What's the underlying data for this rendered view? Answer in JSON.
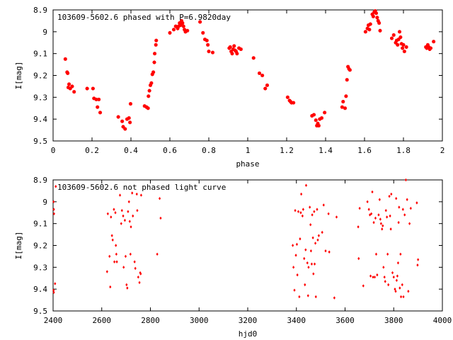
{
  "chart_data": [
    {
      "type": "scatter",
      "title": "103609-5602.6 phased with P=6.9820day",
      "xlabel": "phase",
      "ylabel": "I[mag]",
      "xlim": [
        0,
        2
      ],
      "ylim": [
        8.9,
        9.5
      ],
      "y_inverted": true,
      "x_ticks": [
        "0",
        "0.2",
        "0.4",
        "0.6",
        "0.8",
        "1",
        "1.2",
        "1.4",
        "1.6",
        "1.8",
        "2"
      ],
      "y_ticks": [
        "8.9",
        "9",
        "9.1",
        "9.2",
        "9.3",
        "9.4",
        "9.5"
      ],
      "grid": false,
      "legend": "none",
      "marker_color": "#ff0000",
      "marker": "cross",
      "points": [
        [
          0.063,
          9.125
        ],
        [
          0.072,
          9.185
        ],
        [
          0.075,
          9.19
        ],
        [
          0.078,
          9.255
        ],
        [
          0.082,
          9.24
        ],
        [
          0.088,
          9.26
        ],
        [
          0.098,
          9.25
        ],
        [
          0.108,
          9.275
        ],
        [
          0.175,
          9.26
        ],
        [
          0.205,
          9.26
        ],
        [
          0.21,
          9.305
        ],
        [
          0.222,
          9.31
        ],
        [
          0.228,
          9.345
        ],
        [
          0.235,
          9.31
        ],
        [
          0.242,
          9.37
        ],
        [
          0.335,
          9.39
        ],
        [
          0.355,
          9.41
        ],
        [
          0.36,
          9.435
        ],
        [
          0.37,
          9.445
        ],
        [
          0.38,
          9.4
        ],
        [
          0.39,
          9.395
        ],
        [
          0.395,
          9.415
        ],
        [
          0.398,
          9.33
        ],
        [
          0.47,
          9.34
        ],
        [
          0.48,
          9.345
        ],
        [
          0.488,
          9.35
        ],
        [
          0.49,
          9.295
        ],
        [
          0.495,
          9.27
        ],
        [
          0.5,
          9.245
        ],
        [
          0.505,
          9.235
        ],
        [
          0.51,
          9.195
        ],
        [
          0.515,
          9.185
        ],
        [
          0.52,
          9.14
        ],
        [
          0.522,
          9.1
        ],
        [
          0.528,
          9.06
        ],
        [
          0.53,
          9.04
        ],
        [
          0.6,
          9.005
        ],
        [
          0.62,
          8.99
        ],
        [
          0.63,
          8.975
        ],
        [
          0.64,
          8.985
        ],
        [
          0.645,
          8.975
        ],
        [
          0.65,
          8.96
        ],
        [
          0.655,
          8.97
        ],
        [
          0.66,
          8.95
        ],
        [
          0.665,
          8.96
        ],
        [
          0.67,
          8.975
        ],
        [
          0.675,
          8.99
        ],
        [
          0.68,
          9.0
        ],
        [
          0.69,
          8.995
        ],
        [
          0.755,
          8.955
        ],
        [
          0.77,
          9.005
        ],
        [
          0.78,
          9.035
        ],
        [
          0.79,
          9.04
        ],
        [
          0.795,
          9.06
        ],
        [
          0.8,
          9.09
        ],
        [
          0.82,
          9.095
        ],
        [
          0.905,
          9.075
        ],
        [
          0.91,
          9.07
        ],
        [
          0.915,
          9.09
        ],
        [
          0.92,
          9.1
        ],
        [
          0.925,
          9.08
        ],
        [
          0.93,
          9.065
        ],
        [
          0.935,
          9.085
        ],
        [
          0.94,
          9.09
        ],
        [
          0.945,
          9.1
        ],
        [
          0.955,
          9.075
        ],
        [
          0.965,
          9.08
        ],
        [
          1.03,
          9.12
        ],
        [
          1.06,
          9.19
        ],
        [
          1.075,
          9.2
        ],
        [
          1.09,
          9.26
        ],
        [
          1.1,
          9.245
        ],
        [
          1.205,
          9.3
        ],
        [
          1.215,
          9.315
        ],
        [
          1.22,
          9.32
        ],
        [
          1.225,
          9.325
        ],
        [
          1.235,
          9.325
        ],
        [
          1.33,
          9.385
        ],
        [
          1.34,
          9.38
        ],
        [
          1.35,
          9.405
        ],
        [
          1.355,
          9.43
        ],
        [
          1.36,
          9.42
        ],
        [
          1.365,
          9.43
        ],
        [
          1.37,
          9.4
        ],
        [
          1.38,
          9.395
        ],
        [
          1.395,
          9.37
        ],
        [
          1.485,
          9.345
        ],
        [
          1.49,
          9.32
        ],
        [
          1.5,
          9.35
        ],
        [
          1.505,
          9.295
        ],
        [
          1.51,
          9.22
        ],
        [
          1.515,
          9.16
        ],
        [
          1.52,
          9.17
        ],
        [
          1.525,
          9.175
        ],
        [
          1.605,
          9.0
        ],
        [
          1.615,
          8.985
        ],
        [
          1.62,
          8.97
        ],
        [
          1.625,
          8.99
        ],
        [
          1.63,
          8.965
        ],
        [
          1.64,
          8.92
        ],
        [
          1.645,
          8.93
        ],
        [
          1.65,
          8.91
        ],
        [
          1.655,
          8.905
        ],
        [
          1.66,
          8.915
        ],
        [
          1.665,
          8.935
        ],
        [
          1.67,
          8.95
        ],
        [
          1.675,
          8.96
        ],
        [
          1.68,
          8.995
        ],
        [
          1.74,
          9.03
        ],
        [
          1.75,
          9.015
        ],
        [
          1.76,
          9.05
        ],
        [
          1.765,
          9.04
        ],
        [
          1.77,
          9.06
        ],
        [
          1.775,
          9.035
        ],
        [
          1.78,
          9.0
        ],
        [
          1.785,
          9.025
        ],
        [
          1.79,
          9.055
        ],
        [
          1.795,
          9.075
        ],
        [
          1.8,
          9.06
        ],
        [
          1.805,
          9.09
        ],
        [
          1.815,
          9.07
        ],
        [
          1.915,
          9.07
        ],
        [
          1.92,
          9.075
        ],
        [
          1.925,
          9.06
        ],
        [
          1.93,
          9.07
        ],
        [
          1.935,
          9.08
        ],
        [
          1.94,
          9.075
        ],
        [
          1.955,
          9.045
        ]
      ]
    },
    {
      "type": "scatter",
      "title": "103609-5602.6 not phased light curve",
      "xlabel": "hjd0",
      "ylabel": "I[mag]",
      "xlim": [
        2400,
        4000
      ],
      "ylim": [
        8.9,
        9.5
      ],
      "y_inverted": true,
      "x_ticks": [
        "2400",
        "2600",
        "2800",
        "3000",
        "3200",
        "3400",
        "3600",
        "3800",
        "4000"
      ],
      "y_ticks": [
        "8.9",
        "9",
        "9.1",
        "9.2",
        "9.3",
        "9.4",
        "9.5"
      ],
      "grid": false,
      "legend": "none",
      "marker_color": "#ff0000",
      "marker": "diamond",
      "points": [
        [
          2402,
          9.0
        ],
        [
          2403,
          9.035
        ],
        [
          2404,
          9.055
        ],
        [
          2402,
          9.405
        ],
        [
          2403,
          9.415
        ],
        [
          2408,
          9.375
        ],
        [
          2411,
          8.93
        ],
        [
          2622,
          9.32
        ],
        [
          2625,
          9.055
        ],
        [
          2632,
          9.25
        ],
        [
          2635,
          9.39
        ],
        [
          2638,
          9.07
        ],
        [
          2642,
          9.155
        ],
        [
          2645,
          9.175
        ],
        [
          2650,
          9.035
        ],
        [
          2652,
          9.275
        ],
        [
          2656,
          9.05
        ],
        [
          2658,
          9.2
        ],
        [
          2660,
          9.24
        ],
        [
          2662,
          9.275
        ],
        [
          2675,
          8.97
        ],
        [
          2680,
          9.1
        ],
        [
          2683,
          9.04
        ],
        [
          2688,
          9.065
        ],
        [
          2690,
          9.3
        ],
        [
          2695,
          9.085
        ],
        [
          2698,
          9.25
        ],
        [
          2702,
          9.38
        ],
        [
          2705,
          9.395
        ],
        [
          2708,
          9.045
        ],
        [
          2712,
          9.0
        ],
        [
          2715,
          9.09
        ],
        [
          2718,
          9.24
        ],
        [
          2720,
          9.115
        ],
        [
          2725,
          8.96
        ],
        [
          2728,
          9.065
        ],
        [
          2735,
          9.275
        ],
        [
          2738,
          9.305
        ],
        [
          2744,
          8.965
        ],
        [
          2746,
          9.04
        ],
        [
          2750,
          9.345
        ],
        [
          2755,
          9.37
        ],
        [
          2758,
          9.325
        ],
        [
          2760,
          9.33
        ],
        [
          2762,
          8.97
        ],
        [
          2828,
          9.24
        ],
        [
          2838,
          8.985
        ],
        [
          2842,
          9.075
        ],
        [
          3385,
          9.2
        ],
        [
          3388,
          9.3
        ],
        [
          3392,
          9.405
        ],
        [
          3395,
          9.04
        ],
        [
          3398,
          9.245
        ],
        [
          3402,
          9.195
        ],
        [
          3404,
          9.335
        ],
        [
          3408,
          9.045
        ],
        [
          3412,
          9.435
        ],
        [
          3415,
          9.17
        ],
        [
          3418,
          9.05
        ],
        [
          3420,
          8.965
        ],
        [
          3425,
          9.065
        ],
        [
          3428,
          9.035
        ],
        [
          3432,
          9.26
        ],
        [
          3435,
          9.38
        ],
        [
          3438,
          9.22
        ],
        [
          3440,
          8.925
        ],
        [
          3445,
          9.28
        ],
        [
          3448,
          9.43
        ],
        [
          3450,
          9.3
        ],
        [
          3455,
          9.025
        ],
        [
          3458,
          9.105
        ],
        [
          3460,
          9.225
        ],
        [
          3463,
          9.285
        ],
        [
          3465,
          9.06
        ],
        [
          3468,
          9.165
        ],
        [
          3470,
          9.33
        ],
        [
          3473,
          9.045
        ],
        [
          3475,
          9.285
        ],
        [
          3478,
          9.19
        ],
        [
          3480,
          9.435
        ],
        [
          3485,
          9.035
        ],
        [
          3488,
          9.175
        ],
        [
          3492,
          9.155
        ],
        [
          3506,
          9.14
        ],
        [
          3512,
          9.015
        ],
        [
          3520,
          9.225
        ],
        [
          3532,
          9.055
        ],
        [
          3535,
          9.23
        ],
        [
          3556,
          9.44
        ],
        [
          3565,
          9.07
        ],
        [
          3654,
          9.115
        ],
        [
          3656,
          9.26
        ],
        [
          3660,
          9.03
        ],
        [
          3675,
          9.385
        ],
        [
          3692,
          9.0
        ],
        [
          3698,
          9.035
        ],
        [
          3702,
          9.06
        ],
        [
          3705,
          9.34
        ],
        [
          3708,
          9.055
        ],
        [
          3712,
          8.955
        ],
        [
          3715,
          9.345
        ],
        [
          3718,
          9.095
        ],
        [
          3722,
          9.345
        ],
        [
          3725,
          9.075
        ],
        [
          3728,
          9.24
        ],
        [
          3732,
          9.335
        ],
        [
          3738,
          9.06
        ],
        [
          3742,
          8.99
        ],
        [
          3745,
          9.08
        ],
        [
          3748,
          9.1
        ],
        [
          3752,
          9.125
        ],
        [
          3755,
          9.11
        ],
        [
          3758,
          9.3
        ],
        [
          3762,
          9.345
        ],
        [
          3765,
          9.365
        ],
        [
          3768,
          9.04
        ],
        [
          3772,
          9.07
        ],
        [
          3775,
          9.24
        ],
        [
          3778,
          9.38
        ],
        [
          3782,
          8.975
        ],
        [
          3785,
          9.065
        ],
        [
          3788,
          9.125
        ],
        [
          3790,
          8.965
        ],
        [
          3795,
          9.325
        ],
        [
          3800,
          9.345
        ],
        [
          3805,
          9.4
        ],
        [
          3808,
          9.41
        ],
        [
          3810,
          8.985
        ],
        [
          3812,
          9.36
        ],
        [
          3815,
          9.34
        ],
        [
          3818,
          9.28
        ],
        [
          3820,
          9.095
        ],
        [
          3822,
          9.025
        ],
        [
          3825,
          9.395
        ],
        [
          3828,
          9.24
        ],
        [
          3830,
          9.435
        ],
        [
          3835,
          9.38
        ],
        [
          3838,
          9.035
        ],
        [
          3840,
          9.435
        ],
        [
          3845,
          9.06
        ],
        [
          3850,
          8.9
        ],
        [
          3855,
          8.99
        ],
        [
          3860,
          9.41
        ],
        [
          3865,
          9.1
        ],
        [
          3870,
          9.03
        ],
        [
          3895,
          9.005
        ],
        [
          3898,
          9.29
        ],
        [
          3900,
          9.265
        ]
      ]
    }
  ]
}
